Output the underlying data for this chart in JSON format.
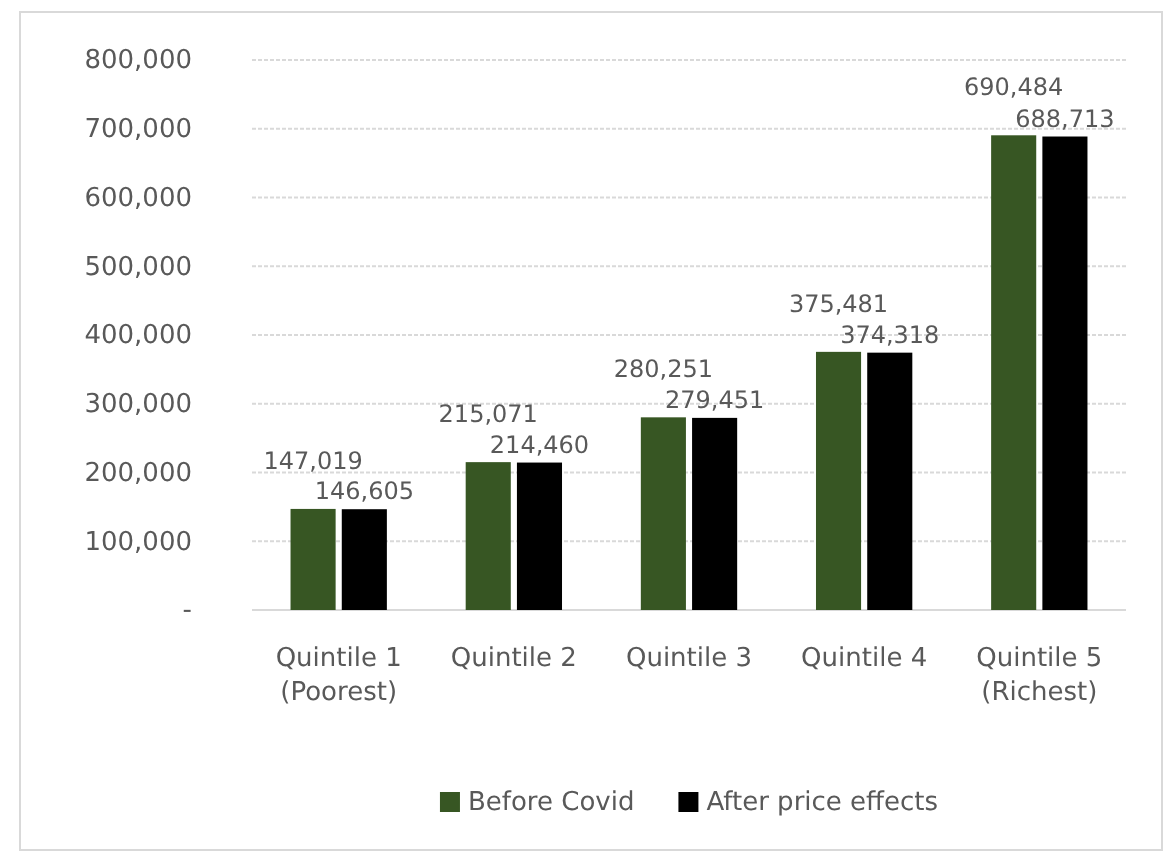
{
  "chart_data": {
    "type": "bar",
    "categories": [
      "Quintile 1 (Poorest)",
      "Quintile 2",
      "Quintile 3",
      "Quintile 4",
      "Quintile 5 (Richest)"
    ],
    "series": [
      {
        "name": "Before Covid",
        "color": "#375623",
        "values": [
          147019,
          215071,
          280251,
          375481,
          690484
        ],
        "value_labels": [
          "147,019",
          "215,071",
          "280,251",
          "375,481",
          "690,484"
        ]
      },
      {
        "name": "After price effects",
        "color": "#000000",
        "values": [
          146605,
          214460,
          279451,
          374318,
          688713
        ],
        "value_labels": [
          "146,605",
          "214,460",
          "279,451",
          "374,318",
          "688,713"
        ]
      }
    ],
    "ylim": [
      0,
      800000
    ],
    "yticks": [
      {
        "value": 0,
        "label": "-"
      },
      {
        "value": 100000,
        "label": "100,000"
      },
      {
        "value": 200000,
        "label": "200,000"
      },
      {
        "value": 300000,
        "label": "300,000"
      },
      {
        "value": 400000,
        "label": "400,000"
      },
      {
        "value": 500000,
        "label": "500,000"
      },
      {
        "value": 600000,
        "label": "600,000"
      },
      {
        "value": 700000,
        "label": "700,000"
      },
      {
        "value": 800000,
        "label": "800,000"
      }
    ],
    "grid": "y",
    "legend": "bottom"
  }
}
